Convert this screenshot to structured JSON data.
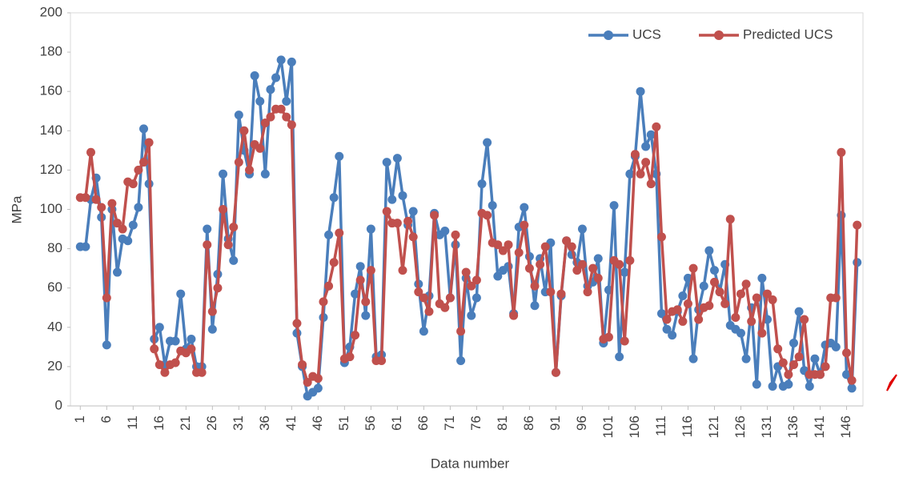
{
  "chart_data": {
    "type": "line",
    "xlabel": "Data number",
    "ylabel": "MPa",
    "categories": [
      "1",
      null,
      null,
      null,
      null,
      "6",
      null,
      null,
      null,
      null,
      "11",
      null,
      null,
      null,
      null,
      "16",
      null,
      null,
      null,
      null,
      "21",
      null,
      null,
      null,
      null,
      "26",
      null,
      null,
      null,
      null,
      "31",
      null,
      null,
      null,
      null,
      "36",
      null,
      null,
      null,
      null,
      "41",
      null,
      null,
      null,
      null,
      "46",
      null,
      null,
      null,
      null,
      "51",
      null,
      null,
      null,
      null,
      "56",
      null,
      null,
      null,
      null,
      "61",
      null,
      null,
      null,
      null,
      "66",
      null,
      null,
      null,
      null,
      "71",
      null,
      null,
      null,
      null,
      "76",
      null,
      null,
      null,
      null,
      "81",
      null,
      null,
      null,
      null,
      "86",
      null,
      null,
      null,
      null,
      "91",
      null,
      null,
      null,
      null,
      "96",
      null,
      null,
      null,
      null,
      "101",
      null,
      null,
      null,
      null,
      "106",
      null,
      null,
      null,
      null,
      "111",
      null,
      null,
      null,
      null,
      "116",
      null,
      null,
      null,
      null,
      "121",
      null,
      null,
      null,
      null,
      "126",
      null,
      null,
      null,
      null,
      "131",
      null,
      null,
      null,
      null,
      "136",
      null,
      null,
      null,
      null,
      "141",
      null,
      null,
      null,
      null,
      "146",
      null,
      null
    ],
    "series": [
      {
        "name": "UCS",
        "color": "#4a7ebb",
        "values": [
          81,
          81,
          105,
          116,
          96,
          31,
          100,
          68,
          85,
          84,
          92,
          101,
          141,
          113,
          34,
          40,
          21,
          33,
          33,
          57,
          29,
          34,
          20,
          20,
          90,
          39,
          67,
          118,
          85,
          74,
          148,
          130,
          118,
          168,
          155,
          118,
          161,
          167,
          176,
          155,
          175,
          37,
          20,
          5,
          7,
          9,
          45,
          87,
          106,
          127,
          22,
          30,
          57,
          71,
          46,
          90,
          25,
          26,
          124,
          105,
          126,
          107,
          92,
          99,
          62,
          38,
          56,
          98,
          87,
          89,
          55,
          82,
          23,
          65,
          46,
          55,
          113,
          134,
          102,
          66,
          69,
          71,
          47,
          91,
          101,
          76,
          51,
          75,
          58,
          83,
          17,
          56,
          84,
          77,
          73,
          90,
          61,
          63,
          75,
          32,
          59,
          102,
          25,
          68,
          118,
          127,
          160,
          132,
          138,
          118,
          47,
          39,
          36,
          48,
          56,
          65,
          24,
          49,
          61,
          79,
          69,
          58,
          72,
          41,
          39,
          37,
          24,
          50,
          11,
          65,
          44,
          10,
          20,
          10,
          11,
          32,
          48,
          18,
          10,
          24,
          16,
          31,
          32,
          30,
          97,
          16,
          9,
          73
        ]
      },
      {
        "name": "Predicted UCS",
        "color": "#c0504d",
        "values": [
          106,
          106,
          129,
          105,
          101,
          55,
          103,
          93,
          90,
          114,
          113,
          120,
          124,
          134,
          29,
          21,
          17,
          21,
          22,
          28,
          27,
          29,
          17,
          17,
          82,
          48,
          60,
          100,
          82,
          91,
          124,
          140,
          120,
          133,
          131,
          144,
          147,
          151,
          151,
          147,
          143,
          42,
          21,
          12,
          15,
          14,
          53,
          61,
          73,
          88,
          24,
          25,
          36,
          64,
          53,
          69,
          23,
          23,
          99,
          93,
          93,
          69,
          94,
          86,
          58,
          55,
          48,
          97,
          52,
          50,
          55,
          87,
          38,
          68,
          61,
          64,
          98,
          97,
          83,
          82,
          79,
          82,
          46,
          78,
          92,
          70,
          61,
          72,
          81,
          58,
          17,
          57,
          84,
          81,
          69,
          72,
          58,
          70,
          65,
          34,
          35,
          74,
          72,
          33,
          74,
          128,
          118,
          124,
          113,
          142,
          86,
          44,
          48,
          49,
          43,
          52,
          70,
          44,
          50,
          51,
          63,
          58,
          52,
          95,
          45,
          57,
          62,
          43,
          55,
          37,
          57,
          54,
          29,
          22,
          16,
          21,
          25,
          44,
          16,
          16,
          16,
          20,
          55,
          55,
          129,
          27,
          13,
          92
        ]
      }
    ],
    "ylim": [
      0,
      200
    ],
    "yticks": [
      0,
      20,
      40,
      60,
      80,
      100,
      120,
      140,
      160,
      180,
      200
    ],
    "legend": "top-right"
  }
}
